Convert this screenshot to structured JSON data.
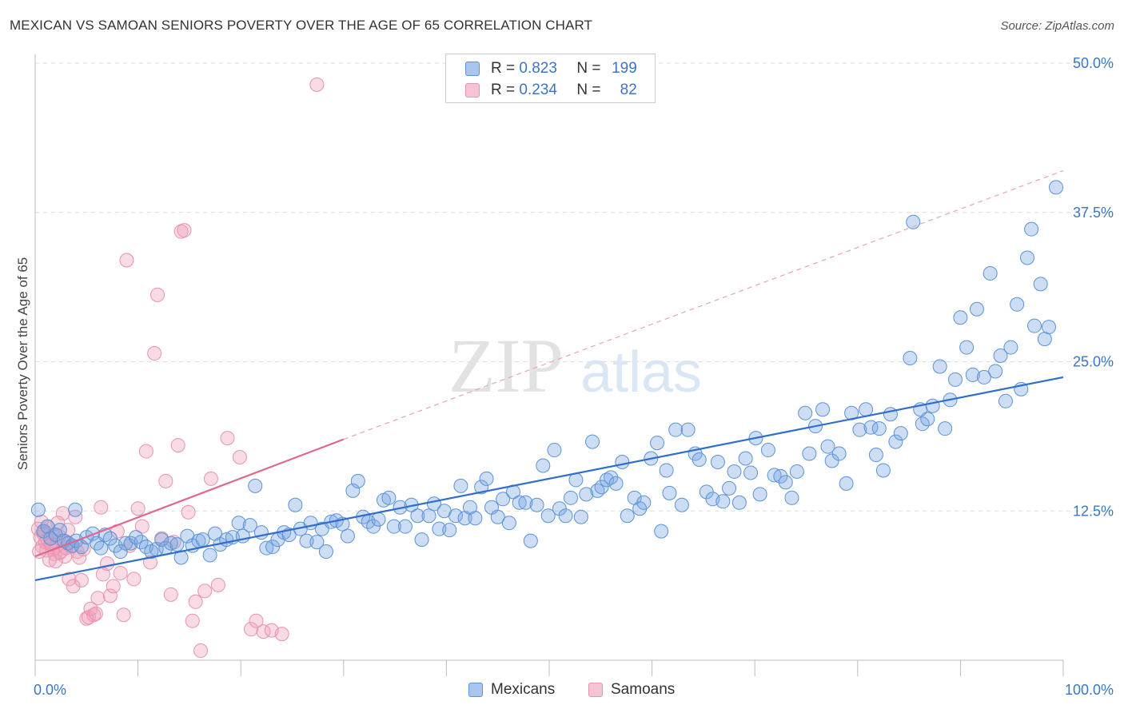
{
  "title": "MEXICAN VS SAMOAN SENIORS POVERTY OVER THE AGE OF 65 CORRELATION CHART",
  "source": "Source: ZipAtlas.com",
  "watermark": {
    "zip": "ZIP",
    "atlas": "atlas"
  },
  "legend": {
    "rows": [
      {
        "r_label": "R =",
        "r_value": "0.823",
        "n_label": "N =",
        "n_value": "199"
      },
      {
        "r_label": "R =",
        "r_value": "0.234",
        "n_label": "N =",
        "n_value": "82"
      }
    ]
  },
  "colors": {
    "blue": "#5b93d8",
    "blue_fill": "rgba(120,165,225,0.38)",
    "blue_line": "#2f6fcb",
    "pink": "#e893ad",
    "pink_fill": "rgba(240,160,190,0.38)",
    "pink_line": "#e06690",
    "axis_text": "#3a76c4",
    "grid": "#dddddd"
  },
  "chart_data": {
    "type": "scatter",
    "title": "MEXICAN VS SAMOAN SENIORS POVERTY OVER THE AGE OF 65 CORRELATION CHART",
    "ylabel": "Seniors Poverty Over the Age of 65",
    "xlabel": "",
    "xlim": [
      0,
      100
    ],
    "ylim": [
      0,
      50
    ],
    "x_tick_labels": [
      "0.0%",
      "100.0%"
    ],
    "y_ticks": [
      12.5,
      25.0,
      37.5,
      50.0
    ],
    "y_tick_labels": [
      "12.5%",
      "25.0%",
      "37.5%",
      "50.0%"
    ],
    "grid": true,
    "legend_position": "top-center",
    "series": [
      {
        "name": "Mexicans",
        "r": 0.823,
        "n": 199,
        "trend": {
          "x": [
            0,
            100
          ],
          "y": [
            6.7,
            23.7
          ]
        },
        "points": [
          [
            0.3,
            12.6
          ],
          [
            0.8,
            10.8
          ],
          [
            1.2,
            11.2
          ],
          [
            1.5,
            10.2
          ],
          [
            2.0,
            10.5
          ],
          [
            2.4,
            10.9
          ],
          [
            2.8,
            10.0
          ],
          [
            3.2,
            9.8
          ],
          [
            3.6,
            9.6
          ],
          [
            4.0,
            10.0
          ],
          [
            3.9,
            12.6
          ],
          [
            4.5,
            9.5
          ],
          [
            5.0,
            10.3
          ],
          [
            5.6,
            10.6
          ],
          [
            6.0,
            9.8
          ],
          [
            6.4,
            9.4
          ],
          [
            6.8,
            10.5
          ],
          [
            7.3,
            10.2
          ],
          [
            7.8,
            9.6
          ],
          [
            8.3,
            9.1
          ],
          [
            8.8,
            9.8
          ],
          [
            9.3,
            9.8
          ],
          [
            9.8,
            10.3
          ],
          [
            10.3,
            9.9
          ],
          [
            10.8,
            9.5
          ],
          [
            11.3,
            9.1
          ],
          [
            11.8,
            9.3
          ],
          [
            12.3,
            10.1
          ],
          [
            12.7,
            9.4
          ],
          [
            13.2,
            9.8
          ],
          [
            13.8,
            9.7
          ],
          [
            14.2,
            8.6
          ],
          [
            14.8,
            10.4
          ],
          [
            15.3,
            9.6
          ],
          [
            15.9,
            10.0
          ],
          [
            16.3,
            10.1
          ],
          [
            17.0,
            8.8
          ],
          [
            17.5,
            10.6
          ],
          [
            18.0,
            9.7
          ],
          [
            18.6,
            10.1
          ],
          [
            19.2,
            10.3
          ],
          [
            19.8,
            11.5
          ],
          [
            20.2,
            10.4
          ],
          [
            20.9,
            11.3
          ],
          [
            21.4,
            14.6
          ],
          [
            22.0,
            10.7
          ],
          [
            22.5,
            9.4
          ],
          [
            23.1,
            9.5
          ],
          [
            23.6,
            10.1
          ],
          [
            24.2,
            10.7
          ],
          [
            24.7,
            10.5
          ],
          [
            25.3,
            13.0
          ],
          [
            25.8,
            11.0
          ],
          [
            26.4,
            10.0
          ],
          [
            26.8,
            11.5
          ],
          [
            27.4,
            9.9
          ],
          [
            27.9,
            11.0
          ],
          [
            28.3,
            9.1
          ],
          [
            28.8,
            11.6
          ],
          [
            29.3,
            11.7
          ],
          [
            29.9,
            11.4
          ],
          [
            30.4,
            10.4
          ],
          [
            30.9,
            14.2
          ],
          [
            31.4,
            15.0
          ],
          [
            31.9,
            12.0
          ],
          [
            32.4,
            11.6
          ],
          [
            32.9,
            11.2
          ],
          [
            33.4,
            11.8
          ],
          [
            33.9,
            13.4
          ],
          [
            34.4,
            13.6
          ],
          [
            34.9,
            11.2
          ],
          [
            35.5,
            12.8
          ],
          [
            36.0,
            11.2
          ],
          [
            36.6,
            13.0
          ],
          [
            37.2,
            12.1
          ],
          [
            37.6,
            10.1
          ],
          [
            38.3,
            12.1
          ],
          [
            38.8,
            13.1
          ],
          [
            39.3,
            11.0
          ],
          [
            39.8,
            12.5
          ],
          [
            40.3,
            10.9
          ],
          [
            40.9,
            12.1
          ],
          [
            41.4,
            14.6
          ],
          [
            41.8,
            11.9
          ],
          [
            42.3,
            12.8
          ],
          [
            42.8,
            11.9
          ],
          [
            43.4,
            14.5
          ],
          [
            43.9,
            15.2
          ],
          [
            44.4,
            12.8
          ],
          [
            45.0,
            12.0
          ],
          [
            45.5,
            13.5
          ],
          [
            46.1,
            11.5
          ],
          [
            46.5,
            14.1
          ],
          [
            47.1,
            13.2
          ],
          [
            47.7,
            13.2
          ],
          [
            48.2,
            10.0
          ],
          [
            48.8,
            13.0
          ],
          [
            49.4,
            16.3
          ],
          [
            49.9,
            12.1
          ],
          [
            50.5,
            17.6
          ],
          [
            51.0,
            12.7
          ],
          [
            51.6,
            12.1
          ],
          [
            52.1,
            13.6
          ],
          [
            52.6,
            15.1
          ],
          [
            53.1,
            12.0
          ],
          [
            53.6,
            13.9
          ],
          [
            54.2,
            18.3
          ],
          [
            54.7,
            14.2
          ],
          [
            55.1,
            14.5
          ],
          [
            55.6,
            15.1
          ],
          [
            56.0,
            15.3
          ],
          [
            56.5,
            14.8
          ],
          [
            57.1,
            16.6
          ],
          [
            57.6,
            12.1
          ],
          [
            58.3,
            13.6
          ],
          [
            58.8,
            12.7
          ],
          [
            59.2,
            13.2
          ],
          [
            59.9,
            16.9
          ],
          [
            60.5,
            18.2
          ],
          [
            60.9,
            10.8
          ],
          [
            61.4,
            15.9
          ],
          [
            61.7,
            14.0
          ],
          [
            62.3,
            19.3
          ],
          [
            62.9,
            13.0
          ],
          [
            63.5,
            19.3
          ],
          [
            64.2,
            17.3
          ],
          [
            64.6,
            16.8
          ],
          [
            65.3,
            14.1
          ],
          [
            65.9,
            13.5
          ],
          [
            66.4,
            16.6
          ],
          [
            66.9,
            13.3
          ],
          [
            67.5,
            14.4
          ],
          [
            68.0,
            15.8
          ],
          [
            68.5,
            13.2
          ],
          [
            69.1,
            16.9
          ],
          [
            69.6,
            15.7
          ],
          [
            70.1,
            18.6
          ],
          [
            70.5,
            13.9
          ],
          [
            71.3,
            17.6
          ],
          [
            71.9,
            15.5
          ],
          [
            72.5,
            15.4
          ],
          [
            73.0,
            14.9
          ],
          [
            73.6,
            13.6
          ],
          [
            74.1,
            15.8
          ],
          [
            74.9,
            20.7
          ],
          [
            75.3,
            17.3
          ],
          [
            75.9,
            19.6
          ],
          [
            76.6,
            21.0
          ],
          [
            77.1,
            17.9
          ],
          [
            77.5,
            16.7
          ],
          [
            78.2,
            17.3
          ],
          [
            78.9,
            14.8
          ],
          [
            79.4,
            20.7
          ],
          [
            80.2,
            19.3
          ],
          [
            80.8,
            21.0
          ],
          [
            81.3,
            19.5
          ],
          [
            81.8,
            17.2
          ],
          [
            82.1,
            19.4
          ],
          [
            82.5,
            15.9
          ],
          [
            83.2,
            20.6
          ],
          [
            83.7,
            18.3
          ],
          [
            84.2,
            19.0
          ],
          [
            85.1,
            25.3
          ],
          [
            85.4,
            36.7
          ],
          [
            86.1,
            21.0
          ],
          [
            86.3,
            19.8
          ],
          [
            86.8,
            20.2
          ],
          [
            87.3,
            21.3
          ],
          [
            88.0,
            24.6
          ],
          [
            88.5,
            19.4
          ],
          [
            89.0,
            21.8
          ],
          [
            89.5,
            23.5
          ],
          [
            90.0,
            28.7
          ],
          [
            90.6,
            26.2
          ],
          [
            91.2,
            23.9
          ],
          [
            91.6,
            29.4
          ],
          [
            92.3,
            23.7
          ],
          [
            92.9,
            32.4
          ],
          [
            93.4,
            24.2
          ],
          [
            93.9,
            25.5
          ],
          [
            94.4,
            21.7
          ],
          [
            94.9,
            26.2
          ],
          [
            95.5,
            29.8
          ],
          [
            95.9,
            22.7
          ],
          [
            96.5,
            33.7
          ],
          [
            96.9,
            36.1
          ],
          [
            97.2,
            28.0
          ],
          [
            97.8,
            31.5
          ],
          [
            98.2,
            26.9
          ],
          [
            98.6,
            27.9
          ],
          [
            99.3,
            39.6
          ]
        ]
      },
      {
        "name": "Samoans",
        "r": 0.234,
        "n": 82,
        "trend": {
          "x": [
            0,
            30
          ],
          "y": [
            8.7,
            18.5
          ]
        },
        "trend_dashed": {
          "x": [
            30,
            100
          ],
          "y": [
            18.5,
            41.0
          ]
        },
        "points": [
          [
            0.3,
            11.0
          ],
          [
            0.5,
            10.3
          ],
          [
            0.7,
            9.5
          ],
          [
            0.9,
            10.8
          ],
          [
            1.1,
            9.2
          ],
          [
            1.3,
            11.1
          ],
          [
            1.5,
            9.8
          ],
          [
            1.7,
            9.3
          ],
          [
            1.9,
            8.9
          ],
          [
            2.1,
            9.6
          ],
          [
            2.3,
            10.4
          ],
          [
            2.5,
            9.1
          ],
          [
            2.7,
            12.3
          ],
          [
            2.9,
            8.7
          ],
          [
            3.1,
            9.9
          ],
          [
            3.3,
            6.8
          ],
          [
            3.5,
            9.5
          ],
          [
            3.7,
            6.2
          ],
          [
            3.9,
            12.0
          ],
          [
            4.1,
            9.1
          ],
          [
            4.3,
            8.6
          ],
          [
            4.5,
            6.7
          ],
          [
            4.7,
            9.3
          ],
          [
            5.0,
            3.5
          ],
          [
            5.2,
            3.6
          ],
          [
            5.4,
            4.3
          ],
          [
            5.7,
            3.8
          ],
          [
            5.9,
            3.9
          ],
          [
            6.1,
            5.2
          ],
          [
            6.4,
            12.8
          ],
          [
            6.6,
            7.2
          ],
          [
            7.0,
            8.1
          ],
          [
            7.3,
            5.4
          ],
          [
            7.6,
            6.2
          ],
          [
            8.0,
            10.8
          ],
          [
            8.3,
            7.3
          ],
          [
            8.6,
            3.8
          ],
          [
            8.9,
            33.5
          ],
          [
            9.2,
            9.6
          ],
          [
            9.6,
            6.8
          ],
          [
            10.0,
            12.7
          ],
          [
            10.4,
            11.2
          ],
          [
            10.8,
            17.5
          ],
          [
            11.2,
            8.2
          ],
          [
            11.6,
            25.7
          ],
          [
            11.9,
            30.6
          ],
          [
            12.3,
            10.2
          ],
          [
            12.7,
            15.0
          ],
          [
            13.2,
            5.5
          ],
          [
            13.5,
            9.9
          ],
          [
            13.9,
            18.0
          ],
          [
            14.2,
            35.9
          ],
          [
            14.5,
            36.0
          ],
          [
            14.9,
            12.4
          ],
          [
            15.3,
            3.3
          ],
          [
            15.6,
            4.9
          ],
          [
            16.1,
            0.8
          ],
          [
            16.5,
            5.8
          ],
          [
            17.1,
            15.2
          ],
          [
            17.8,
            6.3
          ],
          [
            18.7,
            18.6
          ],
          [
            19.9,
            17.0
          ],
          [
            21.0,
            2.6
          ],
          [
            21.5,
            3.3
          ],
          [
            22.2,
            2.4
          ],
          [
            23.0,
            2.5
          ],
          [
            24.0,
            2.2
          ],
          [
            27.4,
            48.2
          ],
          [
            0.4,
            9.1
          ],
          [
            0.6,
            11.6
          ],
          [
            0.8,
            10.6
          ],
          [
            1.0,
            9.9
          ],
          [
            1.2,
            10.1
          ],
          [
            1.4,
            8.4
          ],
          [
            1.6,
            9.7
          ],
          [
            1.8,
            10.5
          ],
          [
            2.0,
            8.3
          ],
          [
            2.2,
            11.5
          ],
          [
            2.4,
            9.0
          ],
          [
            2.6,
            10.0
          ],
          [
            3.0,
            9.4
          ],
          [
            3.2,
            10.9
          ]
        ]
      }
    ]
  }
}
